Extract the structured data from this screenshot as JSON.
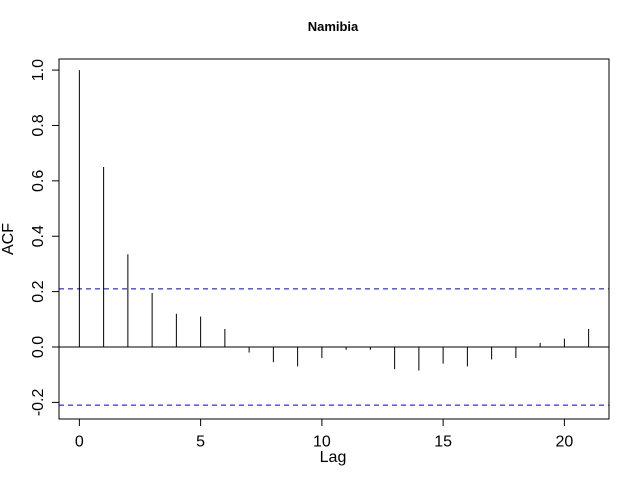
{
  "chart_data": {
    "type": "bar",
    "title": "Namibia",
    "xlabel": "Lag",
    "ylabel": "ACF",
    "x": [
      0,
      1,
      2,
      3,
      4,
      5,
      6,
      7,
      8,
      9,
      10,
      11,
      12,
      13,
      14,
      15,
      16,
      17,
      18,
      19,
      20,
      21
    ],
    "values": [
      1.0,
      0.65,
      0.335,
      0.195,
      0.12,
      0.11,
      0.065,
      -0.02,
      -0.055,
      -0.07,
      -0.04,
      -0.01,
      -0.01,
      -0.08,
      -0.085,
      -0.06,
      -0.07,
      -0.045,
      -0.04,
      0.015,
      0.03,
      0.065
    ],
    "confidence_bound": 0.21,
    "xlim": [
      -0.84,
      21.84
    ],
    "ylim": [
      -0.26,
      1.04
    ],
    "x_ticks": [
      0,
      5,
      10,
      15,
      20
    ],
    "x_tick_labels": [
      "0",
      "5",
      "10",
      "15",
      "20"
    ],
    "y_ticks": [
      -0.2,
      0.0,
      0.2,
      0.4,
      0.6,
      0.8,
      1.0
    ],
    "y_tick_labels": [
      "-0.2",
      "0.0",
      "0.2",
      "0.4",
      "0.6",
      "0.8",
      "1.0"
    ],
    "colors": {
      "bars": "#000000",
      "confidence": "#0000cc",
      "zero_line": "#000000"
    },
    "grid": false
  }
}
